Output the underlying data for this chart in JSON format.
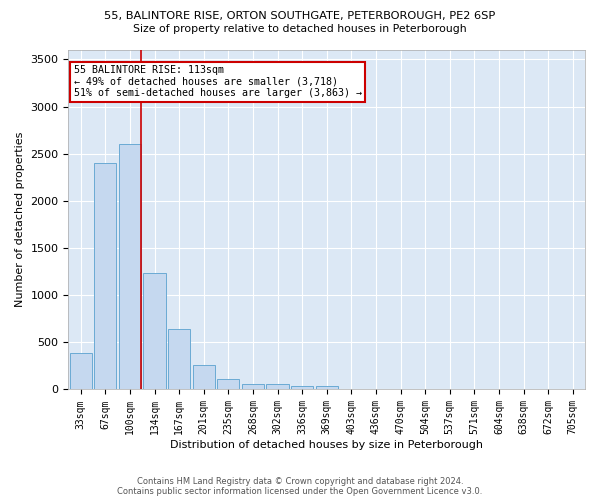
{
  "title_line1": "55, BALINTORE RISE, ORTON SOUTHGATE, PETERBOROUGH, PE2 6SP",
  "title_line2": "Size of property relative to detached houses in Peterborough",
  "xlabel": "Distribution of detached houses by size in Peterborough",
  "ylabel": "Number of detached properties",
  "categories": [
    "33sqm",
    "67sqm",
    "100sqm",
    "134sqm",
    "167sqm",
    "201sqm",
    "235sqm",
    "268sqm",
    "302sqm",
    "336sqm",
    "369sqm",
    "403sqm",
    "436sqm",
    "470sqm",
    "504sqm",
    "537sqm",
    "571sqm",
    "604sqm",
    "638sqm",
    "672sqm",
    "705sqm"
  ],
  "values": [
    390,
    2400,
    2600,
    1240,
    640,
    260,
    110,
    60,
    55,
    40,
    35,
    0,
    0,
    0,
    0,
    0,
    0,
    0,
    0,
    0,
    0
  ],
  "bar_color": "#c5d8ef",
  "bar_edge_color": "#6aaad4",
  "vline_color": "#cc0000",
  "annotation_text": "55 BALINTORE RISE: 113sqm\n← 49% of detached houses are smaller (3,718)\n51% of semi-detached houses are larger (3,863) →",
  "annotation_box_color": "#ffffff",
  "annotation_box_edge": "#cc0000",
  "ylim": [
    0,
    3600
  ],
  "yticks": [
    0,
    500,
    1000,
    1500,
    2000,
    2500,
    3000,
    3500
  ],
  "background_color": "#dce8f5",
  "grid_color": "#ffffff",
  "fig_bg": "#ffffff",
  "footer_line1": "Contains HM Land Registry data © Crown copyright and database right 2024.",
  "footer_line2": "Contains public sector information licensed under the Open Government Licence v3.0."
}
